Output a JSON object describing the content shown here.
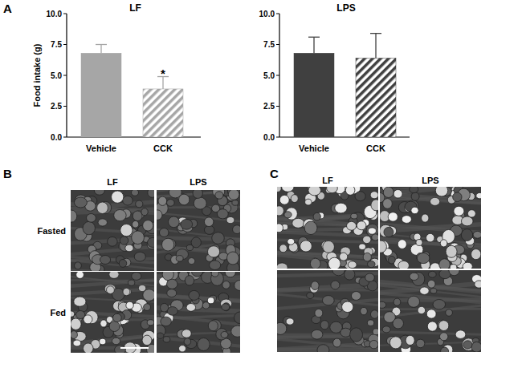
{
  "chart_data": [
    {
      "type": "bar",
      "title": "LF",
      "ylabel": "Food intake (g)",
      "categories": [
        "Vehicle",
        "CCK"
      ],
      "values": [
        6.8,
        3.9
      ],
      "errors": [
        0.7,
        1.0
      ],
      "colors": [
        "#a6a6a6",
        "#a6a6a6"
      ],
      "annotations": [
        {
          "text": "*",
          "category": "CCK"
        }
      ],
      "ylim": [
        0,
        10
      ],
      "yticks": [
        {
          "value": 0,
          "label": "0.0"
        },
        2.5,
        {
          "value": 5,
          "label": "5.0"
        },
        7.5,
        {
          "value": 10,
          "label": "10.0"
        }
      ]
    },
    {
      "type": "bar",
      "title": "LPS",
      "categories": [
        "Vehicle",
        "CCK"
      ],
      "values": [
        6.8,
        6.4
      ],
      "errors": [
        1.3,
        2.0
      ],
      "colors": [
        "#404040",
        "#404040"
      ],
      "ylim": [
        0,
        10
      ],
      "yticks": [
        {
          "value": 0,
          "label": "0.0"
        },
        2.5,
        {
          "value": 5,
          "label": "5.0"
        },
        7.5,
        {
          "value": 10,
          "label": "10.0"
        }
      ]
    }
  ],
  "panel_labels": [
    "A",
    "B",
    "C"
  ],
  "micrographs": [
    {
      "columns": [
        "LF",
        "LPS"
      ],
      "rows": [
        "Fasted",
        "Fed"
      ]
    },
    {
      "columns": [
        "LF",
        "LPS"
      ]
    }
  ]
}
